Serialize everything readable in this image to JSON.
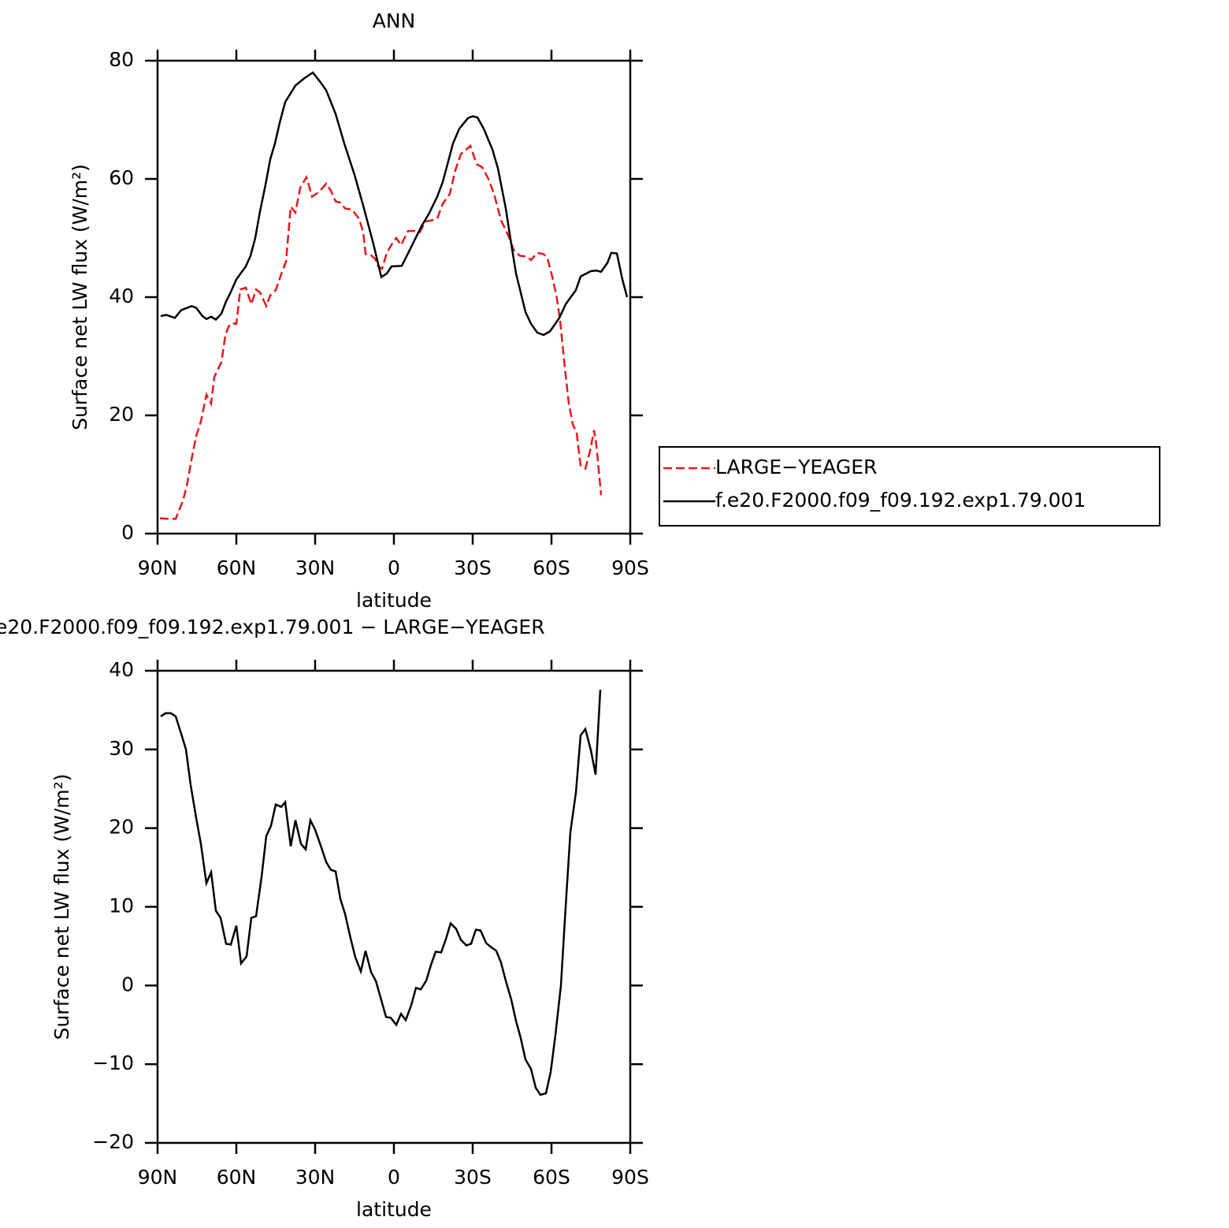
{
  "chart_data": [
    {
      "type": "line",
      "title": "ANN",
      "x_label": "latitude",
      "y_label": "Surface net LW flux (W/m²)",
      "xlim": [
        90,
        -90
      ],
      "ylim": [
        0,
        80
      ],
      "xticks": [
        {
          "value": 90,
          "label": "90N"
        },
        {
          "value": 60,
          "label": "60N"
        },
        {
          "value": 30,
          "label": "30N"
        },
        0,
        {
          "value": -30,
          "label": "30S"
        },
        {
          "value": -60,
          "label": "60S"
        },
        {
          "value": -90,
          "label": "90S"
        }
      ],
      "yticks": [
        0,
        20,
        40,
        60,
        80
      ],
      "legend": "right",
      "series": [
        {
          "name": "LARGE−YEAGER",
          "color": "#e41a1c",
          "line_style": "dashed",
          "x": [
            89.1,
            86.1,
            83.1,
            80.4,
            78.9,
            77.1,
            75.3,
            73.5,
            71.4,
            69.6,
            68.4,
            65.7,
            64.2,
            63,
            61.8,
            60,
            58.5,
            56.4,
            54.3,
            52.5,
            51,
            48.6,
            47.1,
            45,
            42.6,
            41.1,
            39.3,
            37.5,
            35.7,
            33.3,
            32.1,
            31.2,
            28.5,
            25.8,
            24,
            22.2,
            20.4,
            18.6,
            15.9,
            13.2,
            11.7,
            10.8,
            9,
            7.2,
            6,
            4.5,
            2.7,
            0.9,
            -0.9,
            -2.7,
            -5.4,
            -8.1,
            -9.9,
            -12,
            -14.4,
            -16.5,
            -18.6,
            -21.3,
            -23.4,
            -25.5,
            -27.6,
            -29.1,
            -31.5,
            -33.6,
            -36,
            -38.1,
            -40.8,
            -43.5,
            -45.6,
            -48,
            -50.4,
            -52.2,
            -54.6,
            -57,
            -58.5,
            -60,
            -61.8,
            -63.3,
            -65.1,
            -66.6,
            -68.1,
            -69.6,
            -71.1,
            -72.9,
            -74.7,
            -76.2,
            -77.1,
            -78.9
          ],
          "values": [
            2.6,
            2.5,
            2.5,
            5.5,
            8,
            12.5,
            16.5,
            19,
            23.5,
            22,
            26.5,
            29,
            33.5,
            35,
            35.6,
            35.5,
            41.3,
            41.6,
            38.8,
            41.3,
            40.8,
            38.5,
            40.3,
            41.2,
            44.3,
            46,
            55.3,
            54.3,
            58.5,
            60.3,
            58.5,
            57,
            57.8,
            59.2,
            58,
            56.2,
            56,
            55,
            54.8,
            53.2,
            51,
            47.3,
            47.2,
            46.5,
            45.2,
            44.8,
            47.5,
            48.9,
            50,
            48.8,
            51.2,
            51.2,
            51,
            52.8,
            53,
            53.3,
            55.8,
            57.5,
            61.5,
            64.2,
            65,
            65.6,
            62.5,
            62,
            60,
            57.5,
            53,
            50.5,
            48,
            47,
            46.9,
            46.3,
            47.5,
            47.3,
            46.5,
            44,
            40.5,
            36,
            28,
            22,
            18.5,
            17,
            11.5,
            11,
            14,
            17.5,
            15,
            6.5
          ]
        },
        {
          "name": "f.e20.F2000.f09_f09.192.exp1.79.001",
          "color": "#000000",
          "line_style": "solid",
          "x": [
            88.8,
            86.7,
            83.4,
            81,
            77,
            75.3,
            72.9,
            71.4,
            69.6,
            67.8,
            65.7,
            63.9,
            62.4,
            60,
            56.4,
            54.6,
            52.8,
            51,
            48.9,
            47.1,
            45.3,
            43.5,
            41.4,
            37.5,
            34.2,
            30.9,
            28.2,
            25.8,
            22.2,
            18.9,
            15,
            11.7,
            7.8,
            4.8,
            2.7,
            0.9,
            -3,
            -6.6,
            -10.5,
            -13.2,
            -16.5,
            -18.6,
            -22.5,
            -24.9,
            -28.2,
            -30,
            -31.8,
            -34.2,
            -37.5,
            -39.6,
            -42.6,
            -44.4,
            -46.5,
            -50.1,
            -52.2,
            -54.6,
            -57,
            -59.4,
            -63,
            -65.4,
            -69.3,
            -71.1,
            -75,
            -77.1,
            -78.9,
            -81.3,
            -82.8,
            -84.9,
            -87,
            -88.8
          ],
          "values": [
            36.8,
            37,
            36.5,
            37.8,
            38.5,
            38.2,
            36.8,
            36.3,
            36.7,
            36.2,
            37.2,
            39.3,
            40.6,
            43,
            45.2,
            47,
            50,
            54.5,
            59,
            63.3,
            66,
            69.5,
            73,
            75.8,
            77,
            78,
            76.5,
            75,
            71,
            66,
            60.7,
            55.5,
            49,
            43.4,
            44,
            45.2,
            45.3,
            48.5,
            52,
            54,
            57,
            59.5,
            66,
            68.5,
            70.3,
            70.6,
            70.4,
            68.5,
            65,
            61.8,
            55,
            49.8,
            44,
            37.5,
            35.5,
            34,
            33.6,
            34.2,
            36.5,
            38.8,
            41.2,
            43.5,
            44.4,
            44.5,
            44.3,
            45.8,
            47.5,
            47.4,
            43,
            40
          ]
        }
      ]
    },
    {
      "type": "line",
      "title": "e20.F2000.f09_f09.192.exp1.79.001 − LARGE−YEAGER",
      "x_label": "latitude",
      "y_label": "Surface net LW flux (W/m²)",
      "xlim": [
        90,
        -90
      ],
      "ylim": [
        -20,
        40
      ],
      "xticks": [
        {
          "value": 90,
          "label": "90N"
        },
        {
          "value": 60,
          "label": "60N"
        },
        {
          "value": 30,
          "label": "30N"
        },
        0,
        {
          "value": -30,
          "label": "30S"
        },
        {
          "value": -60,
          "label": "60S"
        },
        {
          "value": -90,
          "label": "90S"
        }
      ],
      "yticks": [
        {
          "value": -20,
          "label": "−20"
        },
        {
          "value": -10,
          "label": "−10"
        },
        0,
        10,
        20,
        30,
        40
      ],
      "color": "#000000",
      "x": [
        88.8,
        87,
        84.9,
        83.1,
        81,
        79.2,
        77.4,
        75.3,
        73.5,
        71.4,
        69.6,
        67.8,
        66,
        63.9,
        62.1,
        60,
        58.2,
        56.1,
        54.3,
        52.5,
        50.4,
        48.6,
        46.8,
        45,
        42.9,
        41.4,
        39.3,
        37.5,
        35.4,
        33.6,
        31.8,
        30,
        27.9,
        25.8,
        24,
        22.2,
        20.4,
        18.6,
        16.5,
        14.7,
        12.6,
        10.8,
        8.7,
        6.9,
        5.1,
        3,
        1.2,
        -0.9,
        -2.7,
        -4.5,
        -6.6,
        -8.4,
        -10.2,
        -12.3,
        -14.1,
        -15.9,
        -18,
        -19.8,
        -21.6,
        -23.7,
        -25.5,
        -27.6,
        -29.4,
        -31.2,
        -33,
        -35.1,
        -36.9,
        -39,
        -40.8,
        -42.6,
        -44.7,
        -46.5,
        -48.3,
        -50.1,
        -52.2,
        -54,
        -55.8,
        -57.9,
        -59.7,
        -61.5,
        -63.6,
        -65.4,
        -67.2,
        -69.3,
        -71.1,
        -72.9,
        -75,
        -76.8,
        -78.6
      ],
      "values": [
        34.2,
        34.6,
        34.6,
        34.2,
        32,
        30,
        25.5,
        21.3,
        18,
        13,
        14.4,
        9.5,
        8.6,
        5.3,
        5.2,
        7.6,
        2.8,
        3.7,
        8.6,
        8.8,
        13.8,
        19,
        20.3,
        23,
        22.7,
        23.3,
        17.7,
        21,
        18,
        17.3,
        21,
        19.8,
        17.8,
        15.7,
        14.7,
        14.5,
        11,
        9.1,
        6,
        3.6,
        1.8,
        4.4,
        1.7,
        0.6,
        -1.5,
        -4,
        -4.1,
        -5,
        -3.6,
        -4.4,
        -2.5,
        -0.3,
        -0.5,
        0.6,
        2.6,
        4.3,
        4.2,
        5.9,
        7.9,
        7.2,
        5.8,
        5.1,
        5.3,
        7.1,
        7,
        5.4,
        4.9,
        4.4,
        2.9,
        0.6,
        -1.8,
        -4.5,
        -6.7,
        -9.4,
        -10.6,
        -13,
        -13.9,
        -13.7,
        -11,
        -6.3,
        0,
        10,
        19.5,
        24.5,
        31.8,
        32.6,
        29.9,
        26.8,
        37.6
      ]
    }
  ]
}
